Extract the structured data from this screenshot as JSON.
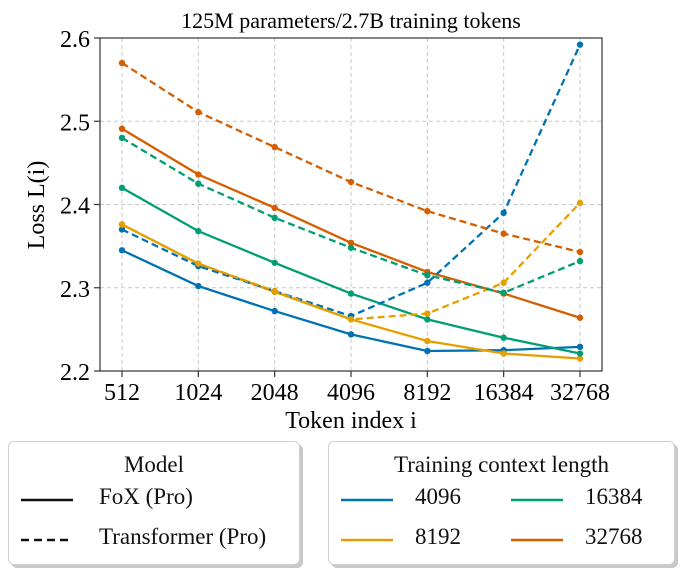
{
  "chart_data": {
    "type": "line",
    "title": "125M parameters/2.7B training tokens",
    "xlabel": "Token index i",
    "ylabel": "Loss L(i)",
    "categories": [
      "512",
      "1024",
      "2048",
      "4096",
      "8192",
      "16384",
      "32768"
    ],
    "yticks": [
      "2.2",
      "2.3",
      "2.4",
      "2.5",
      "2.6"
    ],
    "ylim": [
      2.2,
      2.6
    ],
    "grid": true,
    "series": [
      {
        "name": "FoX (Pro) 4096",
        "model": "FoX (Pro)",
        "context": "4096",
        "color": "#0072b2",
        "dash": "solid",
        "values": [
          2.345,
          2.302,
          2.272,
          2.244,
          2.224,
          2.225,
          2.229
        ]
      },
      {
        "name": "FoX (Pro) 8192",
        "model": "FoX (Pro)",
        "context": "8192",
        "color": "#e69f00",
        "dash": "solid",
        "values": [
          2.376,
          2.329,
          2.295,
          2.262,
          2.236,
          2.221,
          2.215
        ]
      },
      {
        "name": "FoX (Pro) 16384",
        "model": "FoX (Pro)",
        "context": "16384",
        "color": "#009e73",
        "dash": "solid",
        "values": [
          2.42,
          2.368,
          2.33,
          2.293,
          2.262,
          2.24,
          2.221
        ]
      },
      {
        "name": "FoX (Pro) 32768",
        "model": "FoX (Pro)",
        "context": "32768",
        "color": "#d55e00",
        "dash": "solid",
        "values": [
          2.491,
          2.436,
          2.396,
          2.354,
          2.319,
          2.293,
          2.264
        ]
      },
      {
        "name": "Transformer (Pro) 4096",
        "model": "Transformer (Pro)",
        "context": "4096",
        "color": "#0072b2",
        "dash": "dashed",
        "values": [
          2.37,
          2.326,
          2.296,
          2.266,
          2.306,
          2.39,
          2.592
        ]
      },
      {
        "name": "Transformer (Pro) 8192",
        "model": "Transformer (Pro)",
        "context": "8192",
        "color": "#e69f00",
        "dash": "dashed",
        "values": [
          2.376,
          2.329,
          2.296,
          2.262,
          2.269,
          2.306,
          2.402
        ]
      },
      {
        "name": "Transformer (Pro) 16384",
        "model": "Transformer (Pro)",
        "context": "16384",
        "color": "#009e73",
        "dash": "dashed",
        "values": [
          2.48,
          2.425,
          2.384,
          2.348,
          2.315,
          2.294,
          2.332
        ]
      },
      {
        "name": "Transformer (Pro) 32768",
        "model": "Transformer (Pro)",
        "context": "32768",
        "color": "#d55e00",
        "dash": "dashed",
        "values": [
          2.57,
          2.511,
          2.469,
          2.427,
          2.392,
          2.365,
          2.343
        ]
      }
    ]
  },
  "legend_model": {
    "title": "Model",
    "items": [
      {
        "label": "FoX (Pro)",
        "style": "solid"
      },
      {
        "label": "Transformer (Pro)",
        "style": "dashed"
      }
    ]
  },
  "legend_context": {
    "title": "Training context length",
    "items": [
      {
        "label": "4096",
        "color": "#0072b2"
      },
      {
        "label": "16384",
        "color": "#009e73"
      },
      {
        "label": "8192",
        "color": "#e69f00"
      },
      {
        "label": "32768",
        "color": "#d55e00"
      }
    ]
  }
}
